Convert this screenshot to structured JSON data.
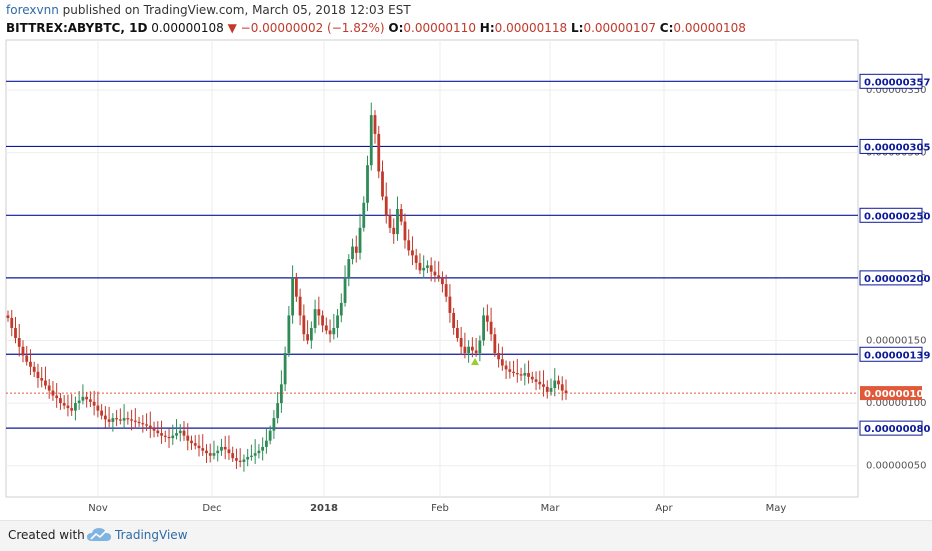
{
  "header": {
    "author": "forexvnn",
    "published_text": "published on TradingView.com, March 05, 2018 12:03 EST"
  },
  "ticker": {
    "symbol": "BITTREX:ABYBTC, 1D",
    "last": "0.00000108",
    "change": "−0.00000002 (−1.82%)",
    "o_label": "O:",
    "o_value": "0.00000110",
    "h_label": "H:",
    "h_value": "0.00000118",
    "l_label": "L:",
    "l_value": "0.00000107",
    "c_label": "C:",
    "c_value": "0.00000108"
  },
  "footer": {
    "created_with": "Created with",
    "brand": "TradingView"
  },
  "colors": {
    "level_line": "#0c1a99",
    "up": "#2e8b57",
    "down": "#c0392b",
    "price_marker": "#e05a3a",
    "arrow": "#c0392b"
  },
  "chart_data": {
    "type": "candlestick",
    "y_scale": "linear",
    "ylim": [
      2.5e-07,
      3.9e-06
    ],
    "y_ticks": [
      "0.00000050",
      "0.00000100",
      "0.00000150",
      "0.00000200",
      "0.00000250",
      "0.00000300",
      "0.00000350"
    ],
    "x_ticks": [
      "Nov",
      "Dec",
      "2018",
      "Feb",
      "Mar",
      "Apr",
      "May"
    ],
    "grid": true,
    "horizontal_levels": [
      "0.00000357",
      "0.00000305",
      "0.00000250",
      "0.00000200",
      "0.00000139",
      "0.00000080"
    ],
    "current_price": "0.00000108",
    "closes": [
      1.68,
      1.6,
      1.52,
      1.45,
      1.38,
      1.33,
      1.29,
      1.25,
      1.2,
      1.18,
      1.14,
      1.1,
      1.06,
      1.04,
      1.0,
      0.98,
      0.96,
      0.94,
      1.0,
      1.02,
      1.05,
      1.03,
      1.01,
      0.98,
      0.94,
      0.9,
      0.87,
      0.85,
      0.88,
      0.87,
      0.86,
      0.88,
      0.87,
      0.86,
      0.85,
      0.84,
      0.83,
      0.82,
      0.8,
      0.78,
      0.76,
      0.74,
      0.73,
      0.72,
      0.74,
      0.76,
      0.78,
      0.74,
      0.7,
      0.68,
      0.66,
      0.64,
      0.62,
      0.6,
      0.58,
      0.6,
      0.62,
      0.65,
      0.63,
      0.6,
      0.56,
      0.54,
      0.53,
      0.55,
      0.57,
      0.58,
      0.6,
      0.62,
      0.65,
      0.7,
      0.78,
      0.88,
      1.0,
      1.15,
      1.4,
      1.7,
      2.0,
      1.85,
      1.7,
      1.55,
      1.5,
      1.6,
      1.75,
      1.7,
      1.62,
      1.58,
      1.55,
      1.6,
      1.7,
      1.8,
      2.0,
      2.15,
      2.25,
      2.2,
      2.4,
      2.6,
      2.9,
      3.3,
      3.15,
      2.85,
      2.65,
      2.5,
      2.4,
      2.35,
      2.55,
      2.45,
      2.3,
      2.22,
      2.18,
      2.12,
      2.06,
      2.08,
      2.1,
      2.05,
      2.02,
      2.0,
      1.95,
      1.85,
      1.72,
      1.6,
      1.52,
      1.45,
      1.4,
      1.45,
      1.42,
      1.4,
      1.5,
      1.7,
      1.65,
      1.55,
      1.4,
      1.35,
      1.3,
      1.27,
      1.25,
      1.24,
      1.23,
      1.22,
      1.24,
      1.21,
      1.19,
      1.17,
      1.15,
      1.13,
      1.09,
      1.12,
      1.18,
      1.15,
      1.1,
      1.08
    ]
  }
}
